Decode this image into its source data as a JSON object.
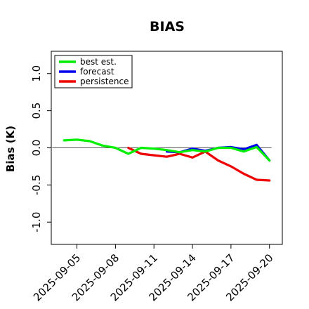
{
  "chart_data": {
    "type": "line",
    "title": "BIAS",
    "xlabel": "",
    "ylabel": "Bias (K)",
    "ylim": [
      -1.3,
      1.3
    ],
    "yticks": [
      -1.0,
      -0.5,
      0.0,
      0.5,
      1.0
    ],
    "ytick_labels": [
      "-1.0",
      "-0.5",
      "0.0",
      "0.5",
      "1.0"
    ],
    "x_dates": [
      "2025-09-04",
      "2025-09-05",
      "2025-09-06",
      "2025-09-07",
      "2025-09-08",
      "2025-09-09",
      "2025-09-10",
      "2025-09-11",
      "2025-09-12",
      "2025-09-13",
      "2025-09-14",
      "2025-09-15",
      "2025-09-16",
      "2025-09-17",
      "2025-09-18",
      "2025-09-19",
      "2025-09-20"
    ],
    "xlim": [
      "2025-09-03",
      "2025-09-21"
    ],
    "xticks": [
      "2025-09-05",
      "2025-09-08",
      "2025-09-11",
      "2025-09-14",
      "2025-09-17",
      "2025-09-20"
    ],
    "xtick_colors": [
      "#000000",
      "#000000",
      "#228b22",
      "#000000",
      "#000000",
      "#000000"
    ],
    "reference_line": {
      "y": 0.0,
      "color": "#555555"
    },
    "legend_position": "top-left",
    "grid": false,
    "series": [
      {
        "name": "best est.",
        "color": "#00ee00",
        "values": [
          0.1,
          0.11,
          0.09,
          0.03,
          0.0,
          -0.08,
          0.0,
          -0.01,
          -0.03,
          -0.06,
          -0.03,
          -0.05,
          0.0,
          0.0,
          -0.05,
          0.01,
          -0.17
        ]
      },
      {
        "name": "forecast",
        "color": "#0000ee",
        "values": [
          null,
          null,
          null,
          null,
          null,
          null,
          null,
          null,
          -0.05,
          -0.06,
          -0.01,
          -0.04,
          0.0,
          0.01,
          -0.02,
          0.04,
          -0.17
        ]
      },
      {
        "name": "persistence",
        "color": "#ee0000",
        "values": [
          null,
          null,
          null,
          null,
          null,
          0.0,
          -0.08,
          -0.1,
          -0.12,
          -0.08,
          -0.13,
          -0.05,
          -0.17,
          -0.25,
          -0.35,
          -0.43,
          -0.44
        ]
      }
    ]
  }
}
